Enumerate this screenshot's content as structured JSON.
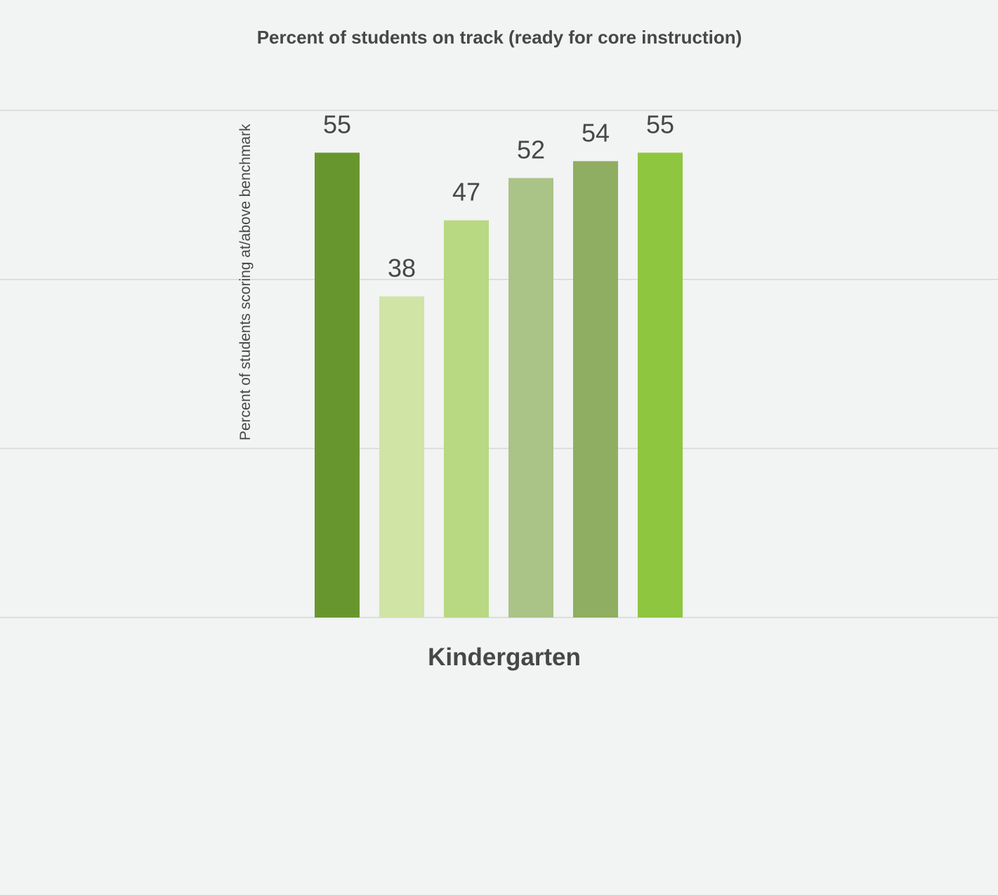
{
  "chart_data": {
    "type": "bar",
    "title": "Percent of students on track (ready for core instruction)",
    "ylabel": "Percent of students scoring at/above benchmark",
    "xlabel": "",
    "categories": [
      "Kindergarten"
    ],
    "ylim": [
      0,
      60
    ],
    "grid": true,
    "legend": "none",
    "series": [
      {
        "values": [
          55
        ],
        "color": "#68962e"
      },
      {
        "values": [
          38
        ],
        "color": "#d0e4a6"
      },
      {
        "values": [
          47
        ],
        "color": "#b8d882"
      },
      {
        "values": [
          52
        ],
        "color": "#aac387"
      },
      {
        "values": [
          54
        ],
        "color": "#8fae61"
      },
      {
        "values": [
          55
        ],
        "color": "#8ec63f"
      }
    ]
  }
}
